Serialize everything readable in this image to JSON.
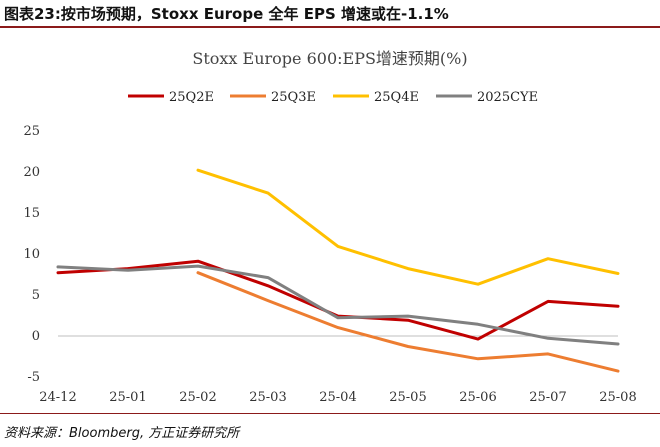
{
  "header": {
    "title": "图表23:按市场预期，Stoxx Europe 全年 EPS 增速或在-1.1%"
  },
  "footer": {
    "source": "资料来源：Bloomberg, 方正证券研究所"
  },
  "chart_data": {
    "type": "line",
    "title": "Stoxx Europe 600:EPS增速预期(%)",
    "xlabel": "",
    "ylabel": "",
    "categories": [
      "24-12",
      "25-01",
      "25-02",
      "25-03",
      "25-04",
      "25-05",
      "25-06",
      "25-07",
      "25-08"
    ],
    "ylim": [
      -5,
      25
    ],
    "yticks": [
      -5,
      0,
      5,
      10,
      15,
      20,
      25
    ],
    "grid": false,
    "legend_position": "top",
    "series": [
      {
        "name": "25Q2E",
        "color": "#c00000",
        "values": [
          7.6,
          8.1,
          9.0,
          6.0,
          2.3,
          1.8,
          -0.5,
          4.1,
          3.5
        ]
      },
      {
        "name": "25Q3E",
        "color": "#ed7d31",
        "values": [
          null,
          null,
          7.6,
          4.2,
          0.9,
          -1.4,
          -2.9,
          -2.3,
          -4.4
        ]
      },
      {
        "name": "25Q4E",
        "color": "#ffc000",
        "values": [
          null,
          null,
          20.1,
          17.3,
          10.8,
          8.1,
          6.2,
          9.3,
          7.5
        ]
      },
      {
        "name": "2025CYE",
        "color": "#808080",
        "values": [
          8.3,
          7.9,
          8.4,
          7.0,
          2.1,
          2.3,
          1.3,
          -0.4,
          -1.1
        ]
      }
    ]
  }
}
